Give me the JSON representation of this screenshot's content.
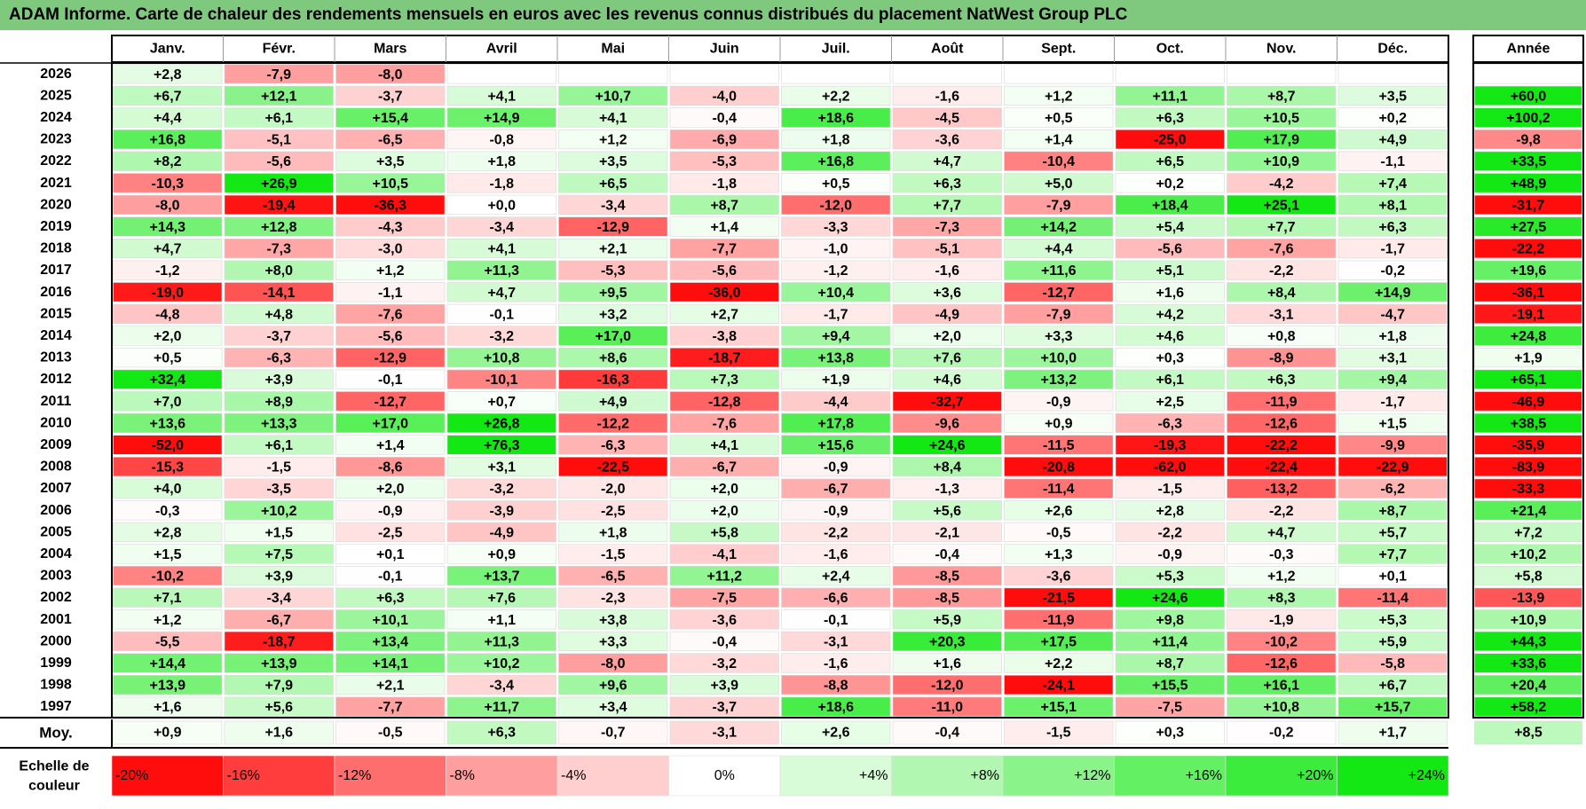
{
  "title": "ADAM Informe. Carte de chaleur des rendements mensuels en euros avec les revenus connus distribués du placement NatWest Group PLC",
  "chart_data": {
    "type": "heatmap",
    "columns": [
      "Janv.",
      "Févr.",
      "Mars",
      "Avril",
      "Mai",
      "Juin",
      "Juil.",
      "Août",
      "Sept.",
      "Oct.",
      "Nov.",
      "Déc."
    ],
    "year_header": "Année",
    "avg_label": "Moy.",
    "scale_label_line1": "Echelle de",
    "scale_label_line2": "couleur",
    "rows": [
      {
        "year": "2026",
        "values": [
          2.8,
          -7.9,
          -8.0,
          null,
          null,
          null,
          null,
          null,
          null,
          null,
          null,
          null
        ],
        "annual": null
      },
      {
        "year": "2025",
        "values": [
          6.7,
          12.1,
          -3.7,
          4.1,
          10.7,
          -4.0,
          2.2,
          -1.6,
          1.2,
          11.1,
          8.7,
          3.5
        ],
        "annual": 60.0
      },
      {
        "year": "2024",
        "values": [
          4.4,
          6.1,
          15.4,
          14.9,
          4.1,
          -0.4,
          18.6,
          -4.5,
          0.5,
          6.3,
          10.5,
          0.2
        ],
        "annual": 100.2
      },
      {
        "year": "2023",
        "values": [
          16.8,
          -5.1,
          -6.5,
          -0.8,
          1.2,
          -6.9,
          1.8,
          -3.6,
          1.4,
          -25.0,
          17.9,
          4.9
        ],
        "annual": -9.8
      },
      {
        "year": "2022",
        "values": [
          8.2,
          -5.6,
          3.5,
          1.8,
          3.5,
          -5.3,
          16.8,
          4.7,
          -10.4,
          6.5,
          10.9,
          -1.1
        ],
        "annual": 33.5
      },
      {
        "year": "2021",
        "values": [
          -10.3,
          26.9,
          10.5,
          -1.8,
          6.5,
          -1.8,
          0.5,
          6.3,
          5.0,
          0.2,
          -4.2,
          7.4
        ],
        "annual": 48.9
      },
      {
        "year": "2020",
        "values": [
          -8.0,
          -19.4,
          -36.3,
          0.0,
          -3.4,
          8.7,
          -12.0,
          7.7,
          -7.9,
          18.4,
          25.1,
          8.1
        ],
        "annual": -31.7
      },
      {
        "year": "2019",
        "values": [
          14.3,
          12.8,
          -4.3,
          -3.4,
          -12.9,
          1.4,
          -3.3,
          -7.3,
          14.2,
          5.4,
          7.7,
          6.3
        ],
        "annual": 27.5
      },
      {
        "year": "2018",
        "values": [
          4.7,
          -7.3,
          -3.0,
          4.1,
          2.1,
          -7.7,
          -1.0,
          -5.1,
          4.4,
          -5.6,
          -7.6,
          -1.7
        ],
        "annual": -22.2
      },
      {
        "year": "2017",
        "values": [
          -1.2,
          8.0,
          1.2,
          11.3,
          -5.3,
          -5.6,
          -1.2,
          -1.6,
          11.6,
          5.1,
          -2.2,
          -0.2
        ],
        "annual": 19.6
      },
      {
        "year": "2016",
        "values": [
          -19.0,
          -14.1,
          -1.1,
          4.7,
          9.5,
          -36.0,
          10.4,
          3.6,
          -12.7,
          1.6,
          8.4,
          14.9
        ],
        "annual": -36.1
      },
      {
        "year": "2015",
        "values": [
          -4.8,
          4.8,
          -7.6,
          -0.1,
          3.2,
          2.7,
          -1.7,
          -4.9,
          -7.9,
          4.2,
          -3.1,
          -4.7
        ],
        "annual": -19.1
      },
      {
        "year": "2014",
        "values": [
          2.0,
          -3.7,
          -5.6,
          -3.2,
          17.0,
          -3.8,
          9.4,
          2.0,
          3.3,
          4.6,
          0.8,
          1.8
        ],
        "annual": 24.8
      },
      {
        "year": "2013",
        "values": [
          0.5,
          -6.3,
          -12.9,
          10.8,
          8.6,
          -18.7,
          13.8,
          7.6,
          10.0,
          0.3,
          -8.9,
          3.1
        ],
        "annual": 1.9
      },
      {
        "year": "2012",
        "values": [
          32.4,
          3.9,
          -0.1,
          -10.1,
          -16.3,
          7.3,
          1.9,
          4.6,
          13.2,
          6.1,
          6.3,
          9.4
        ],
        "annual": 65.1
      },
      {
        "year": "2011",
        "values": [
          7.0,
          8.9,
          -12.7,
          0.7,
          4.9,
          -12.8,
          -4.4,
          -32.7,
          -0.9,
          2.5,
          -11.9,
          -1.7
        ],
        "annual": -46.9
      },
      {
        "year": "2010",
        "values": [
          13.6,
          13.3,
          17.0,
          26.8,
          -12.2,
          -7.6,
          17.8,
          -9.6,
          0.9,
          -6.3,
          -12.6,
          1.5
        ],
        "annual": 38.5
      },
      {
        "year": "2009",
        "values": [
          -52.0,
          6.1,
          1.4,
          76.3,
          -6.3,
          4.1,
          15.6,
          24.6,
          -11.5,
          -19.3,
          -22.2,
          -9.9
        ],
        "annual": -35.9
      },
      {
        "year": "2008",
        "values": [
          -15.3,
          -1.5,
          -8.6,
          3.1,
          -22.5,
          -6.7,
          -0.9,
          8.4,
          -20.8,
          -62.0,
          -22.4,
          -22.9
        ],
        "annual": -83.9
      },
      {
        "year": "2007",
        "values": [
          4.0,
          -3.5,
          2.0,
          -3.2,
          -2.0,
          2.0,
          -6.7,
          -1.3,
          -11.4,
          -1.5,
          -13.2,
          -6.2
        ],
        "annual": -33.3
      },
      {
        "year": "2006",
        "values": [
          -0.3,
          10.2,
          -0.9,
          -3.9,
          -2.5,
          2.0,
          -0.9,
          5.6,
          2.6,
          2.8,
          -2.2,
          8.7
        ],
        "annual": 21.4
      },
      {
        "year": "2005",
        "values": [
          2.8,
          1.5,
          -2.5,
          -4.9,
          1.8,
          5.8,
          -2.2,
          -2.1,
          -0.5,
          -2.2,
          4.7,
          5.7
        ],
        "annual": 7.2
      },
      {
        "year": "2004",
        "values": [
          1.5,
          7.5,
          0.1,
          0.9,
          -1.5,
          -4.1,
          -1.6,
          -0.4,
          1.3,
          -0.9,
          -0.3,
          7.7
        ],
        "annual": 10.2
      },
      {
        "year": "2003",
        "values": [
          -10.2,
          3.9,
          -0.1,
          13.7,
          -6.5,
          11.2,
          2.4,
          -8.5,
          -3.6,
          5.3,
          1.2,
          0.1
        ],
        "annual": 5.8
      },
      {
        "year": "2002",
        "values": [
          7.1,
          -3.4,
          6.3,
          7.6,
          -2.3,
          -7.5,
          -6.6,
          -8.5,
          -21.5,
          24.6,
          8.3,
          -11.4
        ],
        "annual": -13.9
      },
      {
        "year": "2001",
        "values": [
          1.2,
          -6.7,
          10.1,
          1.1,
          3.8,
          -3.6,
          -0.1,
          5.9,
          -11.9,
          9.8,
          -1.9,
          5.3
        ],
        "annual": 10.9
      },
      {
        "year": "2000",
        "values": [
          -5.5,
          -18.7,
          13.4,
          11.3,
          3.3,
          -0.4,
          -3.1,
          20.3,
          17.5,
          11.4,
          -10.2,
          5.9
        ],
        "annual": 44.3
      },
      {
        "year": "1999",
        "values": [
          14.4,
          13.9,
          14.1,
          10.2,
          -8.0,
          -3.2,
          -1.6,
          1.6,
          2.2,
          8.7,
          -12.6,
          -5.8
        ],
        "annual": 33.6
      },
      {
        "year": "1998",
        "values": [
          13.9,
          7.9,
          2.1,
          -3.4,
          9.6,
          3.9,
          -8.8,
          -12.0,
          -24.1,
          15.5,
          16.1,
          6.7
        ],
        "annual": 20.4
      },
      {
        "year": "1997",
        "values": [
          1.6,
          5.6,
          -7.7,
          11.7,
          3.4,
          -3.7,
          18.6,
          -11.0,
          15.1,
          -7.5,
          10.8,
          15.7
        ],
        "annual": 58.2
      }
    ],
    "averages": [
      0.9,
      1.6,
      -0.5,
      6.3,
      -0.7,
      -3.1,
      2.6,
      -0.4,
      -1.5,
      0.3,
      -0.2,
      1.7
    ],
    "average_annual": 8.5,
    "scale": [
      {
        "label": "-20%",
        "value": -20
      },
      {
        "label": "-16%",
        "value": -16
      },
      {
        "label": "-12%",
        "value": -12
      },
      {
        "label": "-8%",
        "value": -8
      },
      {
        "label": "-4%",
        "value": -4
      },
      {
        "label": "0%",
        "value": 0
      },
      {
        "label": "+4%",
        "value": 4
      },
      {
        "label": "+8%",
        "value": 8
      },
      {
        "label": "+12%",
        "value": 12
      },
      {
        "label": "+16%",
        "value": 16
      },
      {
        "label": "+20%",
        "value": 20
      },
      {
        "label": "+24%",
        "value": 24
      }
    ]
  },
  "colors": {
    "title_bg": "#7fc97f",
    "neg_max": "#ff0000",
    "neutral": "#ffffff",
    "pos_max": "#00e600",
    "border": "#000000"
  }
}
